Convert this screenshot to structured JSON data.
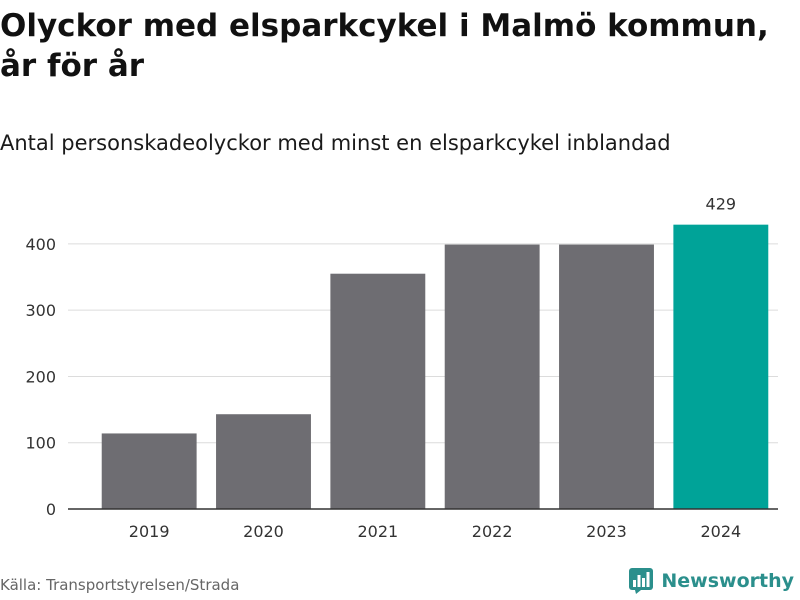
{
  "title": "Olyckor med elsparkcykel i Malmö kommun, år för år",
  "subtitle": "Antal personskadeolyckor med minst en elsparkcykel inblandad",
  "source": "Källa: Transportstyrelsen/Strada",
  "brand": {
    "name": "Newsworthy",
    "icon": "newsworthy-logo-icon",
    "color": "#2b8f8c"
  },
  "chart_data": {
    "type": "bar",
    "categories": [
      "2019",
      "2020",
      "2021",
      "2022",
      "2023",
      "2024"
    ],
    "values": [
      114,
      143,
      355,
      399,
      399,
      429
    ],
    "ylim": [
      0,
      430
    ],
    "yticks": [
      0,
      100,
      200,
      300,
      400
    ],
    "grid": true,
    "bar_color": "#6e6d72",
    "highlight_color": "#00a398",
    "highlight_index": 5,
    "data_labels": [
      {
        "index": 5,
        "text": "429"
      }
    ]
  }
}
